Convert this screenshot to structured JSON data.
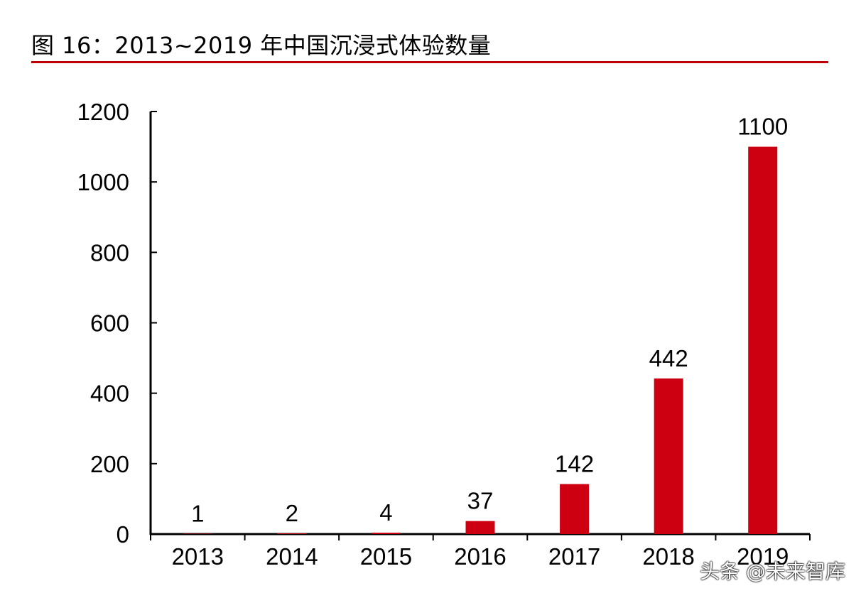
{
  "title": "图 16：2013~2019 年中国沉浸式体验数量",
  "watermark": "头条 @未来智库",
  "colors": {
    "bar": "#cc0010",
    "title_rule": "#c00000",
    "axis": "#000000"
  },
  "chart_data": {
    "type": "bar",
    "title": "图 16：2013~2019 年中国沉浸式体验数量",
    "categories": [
      "2013",
      "2014",
      "2015",
      "2016",
      "2017",
      "2018",
      "2019"
    ],
    "values": [
      1,
      2,
      4,
      37,
      142,
      442,
      1100
    ],
    "data_labels": [
      "1",
      "2",
      "4",
      "37",
      "142",
      "442",
      "1100"
    ],
    "y_ticks": [
      "0",
      "200",
      "400",
      "600",
      "800",
      "1000",
      "1200"
    ],
    "xlabel": "",
    "ylabel": "",
    "ylim": [
      0,
      1200
    ],
    "grid": false,
    "legend": "none"
  }
}
